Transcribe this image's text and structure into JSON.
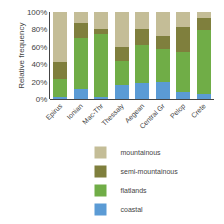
{
  "chart_data": {
    "type": "bar",
    "stacked": true,
    "categories": [
      "Epirus",
      "Ionian",
      "Mac-Thr",
      "Thessaly",
      "Aegean",
      "Central Gr",
      "Pelop",
      "Crete"
    ],
    "series": [
      {
        "name": "coastal",
        "color": "#5b9bd5",
        "values": [
          0.03,
          0.12,
          0.03,
          0.17,
          0.19,
          0.2,
          0.09,
          0.06
        ]
      },
      {
        "name": "flatlands",
        "color": "#70ad47",
        "values": [
          0.2,
          0.58,
          0.72,
          0.27,
          0.43,
          0.38,
          0.45,
          0.74
        ]
      },
      {
        "name": "semi-mountainous",
        "color": "#7f7f3d",
        "values": [
          0.2,
          0.18,
          0.06,
          0.16,
          0.19,
          0.15,
          0.29,
          0.13
        ]
      },
      {
        "name": "mountainous",
        "color": "#c4bd97",
        "values": [
          0.57,
          0.12,
          0.19,
          0.4,
          0.19,
          0.27,
          0.17,
          0.07
        ]
      }
    ],
    "ylabel": "Relative frequency",
    "ylim": [
      0,
      1.0
    ],
    "yticks": [
      {
        "value": 0.0,
        "label": "0%"
      },
      {
        "value": 0.2,
        "label": "20%"
      },
      {
        "value": 0.4,
        "label": "40%"
      },
      {
        "value": 0.6,
        "label": "60%"
      },
      {
        "value": 0.8,
        "label": "80%"
      },
      {
        "value": 1.0,
        "label": "100%"
      }
    ],
    "grid": false,
    "legend": "bottom"
  }
}
